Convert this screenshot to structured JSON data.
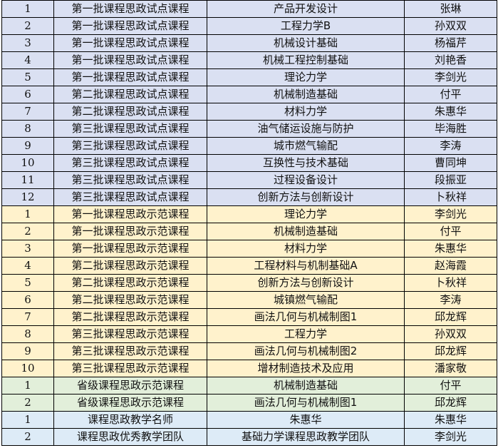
{
  "colors": {
    "group1": "#dae0f2",
    "group2": "#fff2cc",
    "group3": "#e2efda",
    "group4": "#ddebf7"
  },
  "rows": [
    [
      "1",
      "第一批课程思政试点课程",
      "产品开发设计",
      "张琳",
      1
    ],
    [
      "2",
      "第一批课程思政试点课程",
      "工程力学B",
      "孙双双",
      1
    ],
    [
      "3",
      "第一批课程思政试点课程",
      "机械设计基础",
      "杨福芹",
      1
    ],
    [
      "4",
      "第一批课程思政试点课程",
      "机械工程控制基础",
      "刘艳香",
      1
    ],
    [
      "5",
      "第一批课程思政试点课程",
      "理论力学",
      "李剑光",
      1
    ],
    [
      "6",
      "第二批课程思政试点课程",
      "机械制造基础",
      "付平",
      1
    ],
    [
      "7",
      "第二批课程思政试点课程",
      "材料力学",
      "朱惠华",
      1
    ],
    [
      "8",
      "第三批课程思政试点课程",
      "油气储运设施与防护",
      "毕海胜",
      1
    ],
    [
      "9",
      "第三批课程思政试点课程",
      "城市燃气输配",
      "李涛",
      1
    ],
    [
      "10",
      "第三批课程思政试点课程",
      "互换性与技术基础",
      "曹同坤",
      1
    ],
    [
      "11",
      "第三批课程思政试点课程",
      "过程设备设计",
      "段振亚",
      1
    ],
    [
      "12",
      "第三批课程思政试点课程",
      "创新方法与创新设计",
      "卜秋祥",
      1
    ],
    [
      "1",
      "第一批课程思政示范课程",
      "理论力学",
      "李剑光",
      2
    ],
    [
      "2",
      "第一批课程思政示范课程",
      "机械制造基础",
      "付平",
      2
    ],
    [
      "3",
      "第一批课程思政示范课程",
      "材料力学",
      "朱惠华",
      2
    ],
    [
      "4",
      "第二批课程思政示范课程",
      "工程材料与机制基础A",
      "赵海霞",
      2
    ],
    [
      "5",
      "第二批课程思政示范课程",
      "创新方法与创新设计",
      "卜秋祥",
      2
    ],
    [
      "6",
      "第二批课程思政示范课程",
      "城镇燃气输配",
      "李涛",
      2
    ],
    [
      "7",
      "第二批课程思政示范课程",
      "画法几何与机械制图1",
      "邱龙辉",
      2
    ],
    [
      "8",
      "第三批课程思政示范课程",
      "工程力学",
      "孙双双",
      2
    ],
    [
      "9",
      "第三批课程思政示范课程",
      "画法几何与机械制图2",
      "邱龙辉",
      2
    ],
    [
      "10",
      "第三批课程思政示范课程",
      "增材制造技术及应用",
      "潘家敬",
      2
    ],
    [
      "1",
      "省级课程思政示范课程",
      "机械制造基础",
      "付平",
      3
    ],
    [
      "2",
      "省级课程思政示范课程",
      "画法几何与机械制图1",
      "邱龙辉",
      3
    ],
    [
      "1",
      "课程思政教学名师",
      "朱惠华",
      "朱惠华",
      4
    ],
    [
      "2",
      "课程思政优秀教学团队",
      "基础力学课程思政教学团队",
      "李剑光",
      4
    ]
  ]
}
